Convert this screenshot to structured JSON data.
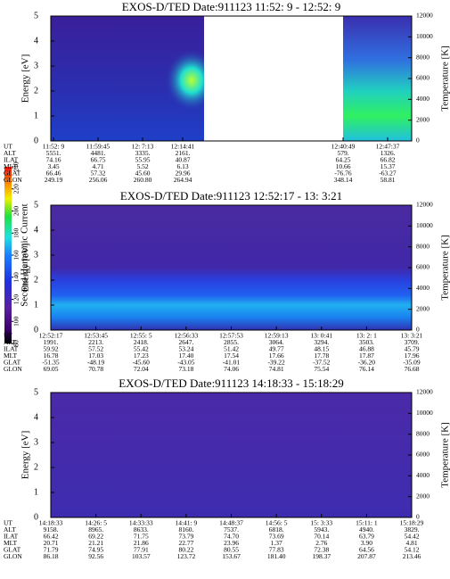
{
  "colorbar": {
    "label": "Second Harmonic Current",
    "ticks": [
      80,
      100,
      120,
      140,
      160,
      180,
      200,
      220,
      240
    ],
    "lim": [
      80,
      240
    ]
  },
  "panels": [
    {
      "title": "EXOS-D/TED   Date:911123  11:52: 9 - 12:52: 9",
      "ylabel": "Energy [eV]",
      "y2label": "Temperature [K]",
      "ylim": [
        0,
        5
      ],
      "yticks": [
        0,
        1,
        2,
        3,
        4,
        5
      ],
      "y2lim": [
        0,
        12000
      ],
      "y2ticks": [
        0,
        2000,
        4000,
        6000,
        8000,
        10000,
        12000
      ],
      "row_labels": [
        "UT",
        "ALT",
        "ILAT",
        "MLT",
        "GLAT",
        "GLON"
      ],
      "columns": [
        [
          "11:52: 9",
          "5551.",
          "74.16",
          "3.45",
          "66.46",
          "249.19"
        ],
        [
          "11:59:45",
          "4481.",
          "66.75",
          "4.71",
          "57.32",
          "256.06"
        ],
        [
          "12: 7:13",
          "3335.",
          "55.95",
          "5.52",
          "45.60",
          "260.80"
        ],
        [
          "12:14:41",
          "2161.",
          "40.87",
          "6.13",
          "29.96",
          "264.94"
        ],
        [
          "12:40:49",
          "579.",
          "64.25",
          "10.66",
          "-76.76",
          "348.14"
        ],
        [
          "12:47:37",
          "1326.",
          "66.82",
          "15.37",
          "-63.27",
          "58.81"
        ]
      ]
    },
    {
      "title": "EXOS-D/TED   Date:911123  12:52:17 - 13: 3:21",
      "ylabel": "Energy [eV]",
      "y2label": "Temperature [K]",
      "ylim": [
        0,
        5
      ],
      "yticks": [
        0,
        1,
        2,
        3,
        4,
        5
      ],
      "y2lim": [
        0,
        12000
      ],
      "y2ticks": [
        0,
        2000,
        4000,
        6000,
        8000,
        10000,
        12000
      ],
      "row_labels": [
        "UT",
        "ALT",
        "ILAT",
        "MLT",
        "GLAT",
        "GLON"
      ],
      "columns": [
        [
          "12:52:17",
          "1991.",
          "59.92",
          "16.78",
          "-51.35",
          "69.05"
        ],
        [
          "12:53:45",
          "2213.",
          "57.52",
          "17.03",
          "-48.19",
          "70.78"
        ],
        [
          "12:55: 5",
          "2418.",
          "55.42",
          "17.23",
          "-45.60",
          "72.04"
        ],
        [
          "12:56:33",
          "2647.",
          "53.24",
          "17.40",
          "-43.05",
          "73.18"
        ],
        [
          "12:57:53",
          "2855.",
          "51.42",
          "17.54",
          "-41.01",
          "74.06"
        ],
        [
          "12:59:13",
          "3064.",
          "49.77",
          "17.66",
          "-39.22",
          "74.81"
        ],
        [
          "13: 0:41",
          "3294.",
          "48.15",
          "17.78",
          "-37.52",
          "75.54"
        ],
        [
          "13: 2: 1",
          "3503.",
          "46.88",
          "17.87",
          "-36.20",
          "76.14"
        ],
        [
          "13: 3:21",
          "3709.",
          "45.79",
          "17.96",
          "-35.09",
          "76.68"
        ]
      ]
    },
    {
      "title": "EXOS-D/TED   Date:911123  14:18:33 - 15:18:29",
      "ylabel": "Energy [eV]",
      "y2label": "Temperature [K]",
      "ylim": [
        0,
        5
      ],
      "yticks": [
        0,
        1,
        2,
        3,
        4,
        5
      ],
      "y2lim": [
        0,
        12000
      ],
      "y2ticks": [
        0,
        2000,
        4000,
        6000,
        8000,
        10000,
        12000
      ],
      "row_labels": [
        "UT",
        "ALT",
        "ILAT",
        "MLT",
        "GLAT",
        "GLON"
      ],
      "columns": [
        [
          "14:18:33",
          "9158.",
          "66.42",
          "20.71",
          "71.79",
          "86.18"
        ],
        [
          "14:26: 5",
          "8965.",
          "69.22",
          "21.21",
          "74.95",
          "92.56"
        ],
        [
          "14:33:33",
          "8633.",
          "71.75",
          "21.86",
          "77.91",
          "103.57"
        ],
        [
          "14:41: 9",
          "8160.",
          "73.79",
          "22.77",
          "80.22",
          "123.72"
        ],
        [
          "14:48:37",
          "7537.",
          "74.70",
          "23.96",
          "80.55",
          "153.67"
        ],
        [
          "14:56: 5",
          "6818.",
          "73.69",
          "1.37",
          "77.83",
          "181.40"
        ],
        [
          "15: 3:33",
          "5943.",
          "70.14",
          "2.76",
          "72.38",
          "198.37"
        ],
        [
          "15:11: 1",
          "4940.",
          "63.79",
          "3.90",
          "64.56",
          "207.87"
        ],
        [
          "15:18:29",
          "3829.",
          "54.42",
          "4.81",
          "54.12",
          "213.46"
        ]
      ]
    }
  ]
}
